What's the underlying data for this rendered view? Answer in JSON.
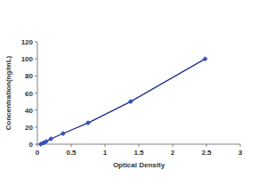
{
  "chart_data": {
    "type": "line",
    "x_label": "Optical Density",
    "y_label": "Concentration(ng/mL)",
    "x": [
      0.05,
      0.09,
      0.13,
      0.2,
      0.38,
      0.75,
      1.38,
      2.48
    ],
    "values": [
      0,
      1.56,
      3.12,
      6.25,
      12.5,
      25,
      50,
      100
    ],
    "color": "#1c2f8a",
    "marker": "diamond",
    "line_style": "solid",
    "grid": false,
    "xlim": [
      0,
      3
    ],
    "xticks": [
      0,
      0.5,
      1,
      1.5,
      2,
      2.5,
      3
    ],
    "ylim": [
      0,
      120
    ],
    "yticks": [
      0,
      20,
      40,
      60,
      80,
      100,
      120
    ]
  }
}
